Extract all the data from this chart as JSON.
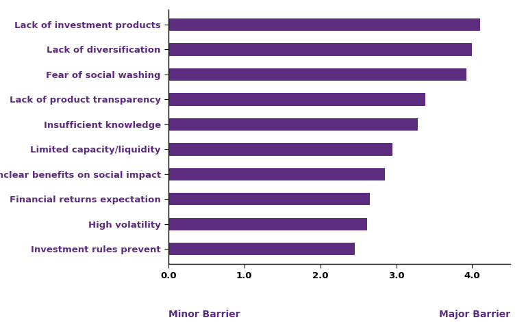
{
  "categories": [
    "Investment rules prevent",
    "High volatility",
    "Financial returns expectation",
    "Unclear benefits on social impact",
    "Limited capacity/liquidity",
    "Insufficient knowledge",
    "Lack of product transparency",
    "Fear of social washing",
    "Lack of diversification",
    "Lack of investment products"
  ],
  "values": [
    2.45,
    2.62,
    2.65,
    2.85,
    2.95,
    3.28,
    3.38,
    3.92,
    4.0,
    4.1
  ],
  "bar_color": "#5C2D7E",
  "xlim": [
    0,
    4.5
  ],
  "xticks": [
    0.0,
    1.0,
    2.0,
    3.0,
    4.0
  ],
  "xtick_labels": [
    "0.0",
    "1.0",
    "2.0",
    "3.0",
    "4.0"
  ],
  "xlabel_left": "Minor Barrier",
  "xlabel_right": "Major Barrier",
  "background_color": "#ffffff",
  "label_fontsize": 9.5,
  "axis_fontsize": 9.5,
  "footer_fontsize": 10.0,
  "bar_height": 0.5
}
